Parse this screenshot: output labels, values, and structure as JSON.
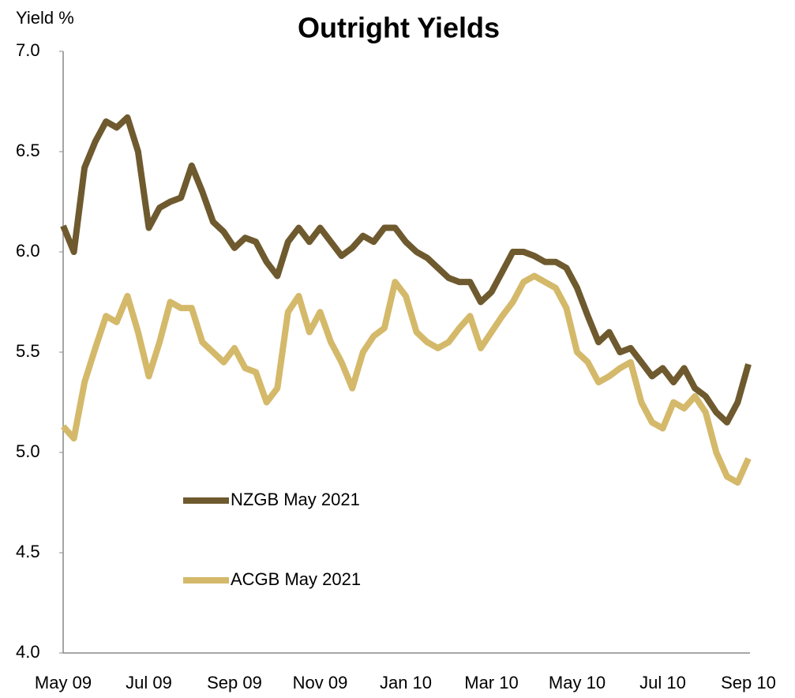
{
  "chart_data": {
    "type": "line",
    "title": "Outright Yields",
    "y_label": "Yield %",
    "categories": [
      "May 09",
      null,
      null,
      null,
      null,
      null,
      null,
      null,
      "Jul 09",
      null,
      null,
      null,
      null,
      null,
      null,
      null,
      "Sep 09",
      null,
      null,
      null,
      null,
      null,
      null,
      null,
      "Nov 09",
      null,
      null,
      null,
      null,
      null,
      null,
      null,
      "Jan 10",
      null,
      null,
      null,
      null,
      null,
      null,
      null,
      "Mar 10",
      null,
      null,
      null,
      null,
      null,
      null,
      null,
      "May 10",
      null,
      null,
      null,
      null,
      null,
      null,
      null,
      "Jul 10",
      null,
      null,
      null,
      null,
      null,
      null,
      null,
      "Sep 10"
    ],
    "series": [
      {
        "name": "NZGB May 2021",
        "color": "#6e5a2e",
        "values": [
          6.13,
          6.0,
          6.42,
          6.55,
          6.65,
          6.62,
          6.67,
          6.5,
          6.12,
          6.22,
          6.25,
          6.27,
          6.43,
          6.3,
          6.15,
          6.1,
          6.02,
          6.07,
          6.05,
          5.95,
          5.88,
          6.05,
          6.12,
          6.05,
          6.12,
          6.05,
          5.98,
          6.02,
          6.08,
          6.05,
          6.12,
          6.12,
          6.05,
          6.0,
          5.97,
          5.92,
          5.87,
          5.85,
          5.85,
          5.75,
          5.8,
          5.9,
          6.0,
          6.0,
          5.98,
          5.95,
          5.95,
          5.92,
          5.82,
          5.68,
          5.55,
          5.6,
          5.5,
          5.52,
          5.45,
          5.38,
          5.42,
          5.35,
          5.42,
          5.32,
          5.28,
          5.2,
          5.15,
          5.25,
          5.44
        ]
      },
      {
        "name": "ACGB May 2021",
        "color": "#d4b96a",
        "values": [
          5.13,
          5.07,
          5.35,
          5.52,
          5.68,
          5.65,
          5.78,
          5.6,
          5.38,
          5.55,
          5.75,
          5.72,
          5.72,
          5.55,
          5.5,
          5.45,
          5.52,
          5.42,
          5.4,
          5.25,
          5.32,
          5.7,
          5.78,
          5.6,
          5.7,
          5.55,
          5.45,
          5.32,
          5.5,
          5.58,
          5.62,
          5.85,
          5.78,
          5.6,
          5.55,
          5.52,
          5.55,
          5.62,
          5.68,
          5.52,
          5.6,
          5.68,
          5.75,
          5.85,
          5.88,
          5.85,
          5.82,
          5.72,
          5.5,
          5.45,
          5.35,
          5.38,
          5.42,
          5.45,
          5.25,
          5.15,
          5.12,
          5.25,
          5.22,
          5.28,
          5.2,
          5.0,
          4.88,
          4.85,
          4.97
        ]
      }
    ],
    "ylim": [
      4,
      7
    ],
    "yticks": [
      {
        "value": 4,
        "label": "4.0"
      },
      4.5,
      {
        "value": 5,
        "label": "5.0"
      },
      5.5,
      {
        "value": 6,
        "label": "6.0"
      },
      6.5,
      {
        "value": 7,
        "label": "7.0"
      }
    ],
    "grid": false
  }
}
